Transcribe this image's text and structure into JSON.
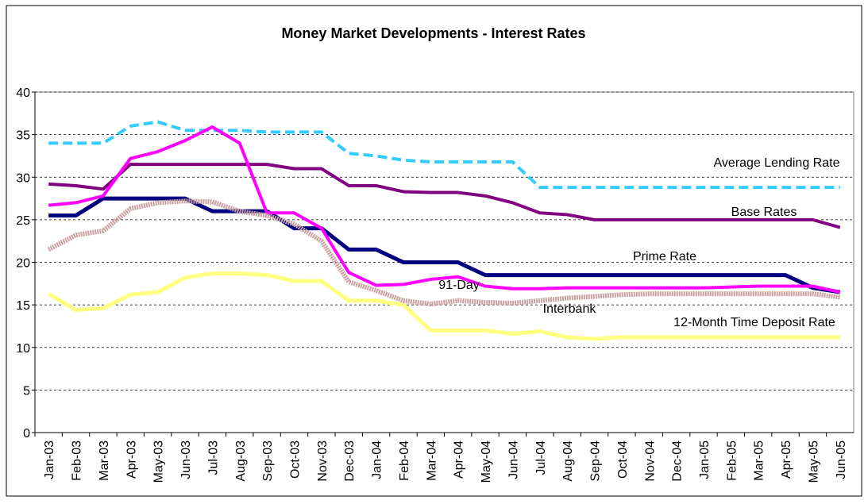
{
  "chart_data": {
    "type": "line",
    "title": "Money Market Developments - Interest Rates",
    "categories": [
      "Jan-03",
      "Feb-03",
      "Mar-03",
      "Apr-03",
      "May-03",
      "Jun-03",
      "Jul-03",
      "Aug-03",
      "Sep-03",
      "Oct-03",
      "Nov-03",
      "Dec-03",
      "Jan-04",
      "Feb-04",
      "Mar-04",
      "Apr-04",
      "May-04",
      "Jun-04",
      "Jul-04",
      "Aug-04",
      "Sep-04",
      "Oct-04",
      "Nov-04",
      "Dec-04",
      "Jan-05",
      "Feb-05",
      "Mar-05",
      "Apr-05",
      "May-05",
      "Jun-05"
    ],
    "ylim": [
      0,
      40
    ],
    "yticks": [
      0,
      5,
      10,
      15,
      20,
      25,
      30,
      35,
      40
    ],
    "grid": true,
    "series": [
      {
        "name": "Average Lending Rate",
        "color": "#33ccff",
        "dashed": true,
        "values": [
          34,
          34,
          34,
          36,
          36.5,
          35.5,
          35.5,
          35.5,
          35.3,
          35.3,
          35.3,
          32.8,
          32.5,
          32,
          31.8,
          31.8,
          31.8,
          31.8,
          28.8,
          28.8,
          28.8,
          28.8,
          28.8,
          28.8,
          28.8,
          28.8,
          28.8,
          28.8,
          28.8,
          28.8
        ]
      },
      {
        "name": "Base Rates",
        "color": "#800080",
        "values": [
          29.2,
          29,
          28.6,
          31.5,
          31.5,
          31.5,
          31.5,
          31.5,
          31.5,
          31,
          31,
          29,
          29,
          28.3,
          28.2,
          28.2,
          27.8,
          27,
          25.8,
          25.6,
          25,
          25,
          25,
          25,
          25,
          25,
          25,
          25,
          25,
          24.1
        ]
      },
      {
        "name": "Prime Rate",
        "color": "#000080",
        "values": [
          25.5,
          25.5,
          27.5,
          27.5,
          27.5,
          27.5,
          26,
          26,
          26,
          24,
          24,
          21.5,
          21.5,
          20,
          20,
          20,
          18.5,
          18.5,
          18.5,
          18.5,
          18.5,
          18.5,
          18.5,
          18.5,
          18.5,
          18.5,
          18.5,
          18.5,
          17,
          16.5
        ]
      },
      {
        "name": "91-Day",
        "color": "#ff00ff",
        "values": [
          26.7,
          27,
          27.8,
          32.2,
          33,
          34.3,
          35.9,
          34,
          25.8,
          25.8,
          24,
          18.8,
          17.3,
          17.4,
          18,
          18.3,
          17.2,
          16.9,
          16.9,
          17,
          17,
          17,
          17,
          17,
          17,
          17.1,
          17.2,
          17.2,
          17.2,
          16.5
        ]
      },
      {
        "name": "Interbank",
        "color": "#c8a0a0",
        "values": [
          21.5,
          23.2,
          23.7,
          26.3,
          27,
          27.2,
          27.1,
          26,
          25.5,
          24.5,
          22.5,
          17.7,
          16.7,
          15.5,
          15.1,
          15.5,
          15.3,
          15.2,
          15.5,
          15.8,
          16,
          16.2,
          16.3,
          16.3,
          16.3,
          16.3,
          16.3,
          16.3,
          16.3,
          15.9
        ]
      },
      {
        "name": "12-Month Time Deposit Rate",
        "color": "#ffff80",
        "values": [
          16.3,
          14.4,
          14.6,
          16.2,
          16.5,
          18.2,
          18.7,
          18.7,
          18.5,
          17.8,
          17.8,
          15.5,
          15.5,
          15,
          12,
          12,
          12,
          11.6,
          11.9,
          11.2,
          11,
          11.2,
          11.2,
          11.2,
          11.2,
          11.2,
          11.2,
          11.2,
          11.2,
          11.2
        ]
      }
    ]
  }
}
